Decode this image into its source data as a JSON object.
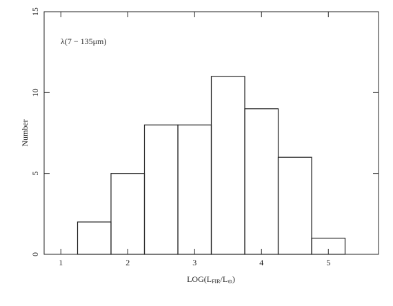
{
  "chart_data": {
    "type": "histogram",
    "annotation": "λ(7 − 135μm)",
    "y_label": "Number",
    "x_label": {
      "main": "LOG(L",
      "sub1": "FIR",
      "mid": "/L",
      "sub2": "⊙",
      "end": ")"
    },
    "bins": [
      1.25,
      1.75,
      2.25,
      2.75,
      3.25,
      3.75,
      4.25,
      4.75,
      5.25
    ],
    "values": [
      2,
      5,
      8,
      8,
      11,
      9,
      6,
      1
    ],
    "color": "#222222",
    "xlim": [
      0.75,
      5.75
    ],
    "xticks": [
      1,
      2,
      3,
      4,
      5
    ],
    "ylim": [
      0,
      15
    ],
    "yticks": [
      0,
      5,
      10,
      15
    ]
  }
}
